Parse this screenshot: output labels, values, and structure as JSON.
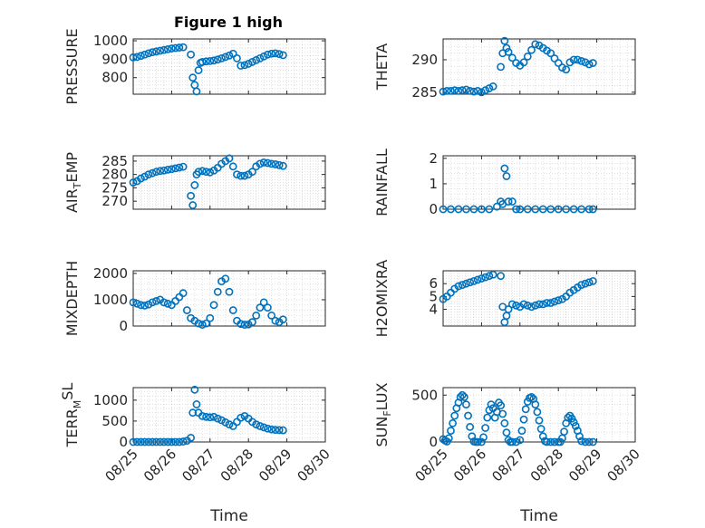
{
  "colors": {
    "marker": "#0072BD",
    "axes": "#262626"
  },
  "figure": {
    "title": "Figure 1 high"
  },
  "chart_data": [
    {
      "type": "scatter",
      "id": "pressure",
      "title": "Figure 1 high",
      "ylabel": {
        "base": "PRESSURE"
      },
      "xlim": [
        25,
        30
      ],
      "ylim": [
        710,
        1010
      ],
      "yticks": [
        800,
        900,
        1000
      ],
      "xticks": [
        25,
        26,
        27,
        28,
        29,
        30
      ],
      "xticklabels": [],
      "xlabel": "",
      "x": [
        25.0,
        25.1,
        25.2,
        25.3,
        25.4,
        25.5,
        25.6,
        25.7,
        25.8,
        25.9,
        26.0,
        26.1,
        26.2,
        26.3,
        26.5,
        26.55,
        26.6,
        26.65,
        26.7,
        26.75,
        26.8,
        26.9,
        27.0,
        27.1,
        27.2,
        27.3,
        27.4,
        27.5,
        27.6,
        27.7,
        27.8,
        27.9,
        28.0,
        28.1,
        28.2,
        28.3,
        28.4,
        28.5,
        28.6,
        28.7,
        28.8,
        28.9
      ],
      "y": [
        910,
        912,
        918,
        925,
        932,
        938,
        942,
        946,
        950,
        954,
        958,
        961,
        963,
        965,
        925,
        800,
        760,
        725,
        840,
        880,
        885,
        888,
        890,
        893,
        898,
        905,
        912,
        920,
        930,
        905,
        865,
        868,
        875,
        885,
        895,
        905,
        915,
        925,
        930,
        932,
        928,
        922
      ]
    },
    {
      "type": "scatter",
      "id": "theta",
      "ylabel": {
        "base": "THETA"
      },
      "xlim": [
        25,
        30
      ],
      "ylim": [
        284.7,
        293.2
      ],
      "yticks": [
        285,
        290
      ],
      "xticks": [
        25,
        26,
        27,
        28,
        29,
        30
      ],
      "xticklabels": [],
      "xlabel": "",
      "x": [
        25.0,
        25.1,
        25.2,
        25.3,
        25.4,
        25.5,
        25.6,
        25.7,
        25.8,
        25.9,
        26.0,
        26.1,
        26.2,
        26.3,
        26.5,
        26.55,
        26.6,
        26.65,
        26.7,
        26.8,
        26.9,
        27.0,
        27.1,
        27.2,
        27.3,
        27.4,
        27.5,
        27.6,
        27.7,
        27.8,
        27.9,
        28.0,
        28.1,
        28.2,
        28.3,
        28.4,
        28.5,
        28.6,
        28.7,
        28.8,
        28.9
      ],
      "y": [
        285.1,
        285.2,
        285.2,
        285.3,
        285.2,
        285.3,
        285.4,
        285.2,
        285.1,
        285.2,
        285.0,
        285.3,
        285.6,
        285.9,
        288.9,
        291.0,
        292.9,
        291.8,
        291.2,
        290.3,
        289.5,
        289.1,
        289.6,
        290.5,
        291.5,
        292.4,
        292.2,
        291.8,
        291.4,
        291.0,
        290.2,
        289.5,
        288.8,
        288.5,
        289.6,
        290.0,
        290.0,
        289.8,
        289.6,
        289.3,
        289.5
      ]
    },
    {
      "type": "scatter",
      "id": "air-temp",
      "ylabel": {
        "base": "AIR",
        "sub": "T",
        "rest": "EMP"
      },
      "xlim": [
        25,
        30
      ],
      "ylim": [
        267,
        287
      ],
      "yticks": [
        270,
        275,
        280,
        285
      ],
      "xticks": [
        25,
        26,
        27,
        28,
        29,
        30
      ],
      "xticklabels": [],
      "xlabel": "",
      "x": [
        25.0,
        25.1,
        25.2,
        25.3,
        25.4,
        25.5,
        25.6,
        25.7,
        25.8,
        25.9,
        26.0,
        26.1,
        26.2,
        26.3,
        26.5,
        26.55,
        26.6,
        26.65,
        26.7,
        26.8,
        26.9,
        27.0,
        27.1,
        27.2,
        27.3,
        27.4,
        27.5,
        27.6,
        27.7,
        27.8,
        27.9,
        28.0,
        28.1,
        28.2,
        28.3,
        28.4,
        28.5,
        28.6,
        28.7,
        28.8,
        28.9
      ],
      "y": [
        277.0,
        277.5,
        278.5,
        279.2,
        280.0,
        280.5,
        281.0,
        281.3,
        281.5,
        281.8,
        282.0,
        282.3,
        282.6,
        282.9,
        272.0,
        268.5,
        276.0,
        280.0,
        281.0,
        281.3,
        281.0,
        280.8,
        281.5,
        282.5,
        284.0,
        285.0,
        286.0,
        283.0,
        280.0,
        279.5,
        279.5,
        280.0,
        281.0,
        283.0,
        284.0,
        284.5,
        284.3,
        284.0,
        283.8,
        283.5,
        283.2
      ]
    },
    {
      "type": "scatter",
      "id": "rainfall",
      "ylabel": {
        "base": "RAINFALL"
      },
      "xlim": [
        25,
        30
      ],
      "ylim": [
        0,
        2.1
      ],
      "yticks": [
        0,
        1,
        2
      ],
      "xticks": [
        25,
        26,
        27,
        28,
        29,
        30
      ],
      "xticklabels": [],
      "xlabel": "",
      "x": [
        25.0,
        25.2,
        25.4,
        25.6,
        25.8,
        26.0,
        26.2,
        26.4,
        26.5,
        26.55,
        26.6,
        26.65,
        26.7,
        26.8,
        26.9,
        27.0,
        27.2,
        27.4,
        27.6,
        27.8,
        28.0,
        28.2,
        28.4,
        28.6,
        28.8,
        28.9
      ],
      "y": [
        0,
        0,
        0,
        0,
        0,
        0,
        0,
        0.1,
        0.3,
        0.2,
        1.6,
        1.3,
        0.3,
        0.3,
        0,
        0,
        0,
        0,
        0,
        0,
        0,
        0,
        0,
        0,
        0,
        0
      ]
    },
    {
      "type": "scatter",
      "id": "mixdepth",
      "ylabel": {
        "base": "MIXDEPTH"
      },
      "xlim": [
        25,
        30
      ],
      "ylim": [
        0,
        2100
      ],
      "yticks": [
        0,
        1000,
        2000
      ],
      "xticks": [
        25,
        26,
        27,
        28,
        29,
        30
      ],
      "xticklabels": [],
      "xlabel": "",
      "x": [
        25.0,
        25.1,
        25.2,
        25.3,
        25.4,
        25.5,
        25.6,
        25.7,
        25.8,
        25.9,
        26.0,
        26.1,
        26.2,
        26.3,
        26.4,
        26.5,
        26.6,
        26.7,
        26.8,
        26.9,
        27.0,
        27.1,
        27.2,
        27.3,
        27.4,
        27.5,
        27.6,
        27.7,
        27.8,
        27.9,
        28.0,
        28.1,
        28.2,
        28.3,
        28.4,
        28.5,
        28.6,
        28.7,
        28.8,
        28.9
      ],
      "y": [
        900,
        850,
        800,
        780,
        820,
        900,
        950,
        1000,
        900,
        850,
        800,
        950,
        1100,
        1250,
        600,
        300,
        200,
        100,
        50,
        100,
        300,
        800,
        1300,
        1700,
        1800,
        1300,
        600,
        200,
        80,
        50,
        60,
        150,
        400,
        700,
        900,
        700,
        400,
        200,
        150,
        250
      ]
    },
    {
      "type": "scatter",
      "id": "h2omixra",
      "ylabel": {
        "base": "H2OMIXRA"
      },
      "xlim": [
        25,
        30
      ],
      "ylim": [
        2.7,
        7.0
      ],
      "yticks": [
        4,
        5,
        6
      ],
      "xticks": [
        25,
        26,
        27,
        28,
        29,
        30
      ],
      "xticklabels": [],
      "xlabel": "",
      "x": [
        25.0,
        25.1,
        25.2,
        25.3,
        25.4,
        25.5,
        25.6,
        25.7,
        25.8,
        25.9,
        26.0,
        26.1,
        26.2,
        26.3,
        26.5,
        26.55,
        26.6,
        26.65,
        26.7,
        26.8,
        26.9,
        27.0,
        27.1,
        27.2,
        27.3,
        27.4,
        27.5,
        27.6,
        27.7,
        27.8,
        27.9,
        28.0,
        28.1,
        28.2,
        28.3,
        28.4,
        28.5,
        28.6,
        28.7,
        28.8,
        28.9
      ],
      "y": [
        4.8,
        5.0,
        5.3,
        5.6,
        5.8,
        5.9,
        6.0,
        6.1,
        6.2,
        6.3,
        6.4,
        6.5,
        6.6,
        6.7,
        6.6,
        4.2,
        3.0,
        3.5,
        4.0,
        4.4,
        4.3,
        4.2,
        4.4,
        4.3,
        4.2,
        4.3,
        4.4,
        4.4,
        4.5,
        4.5,
        4.6,
        4.7,
        4.8,
        5.0,
        5.3,
        5.5,
        5.7,
        5.9,
        6.0,
        6.1,
        6.2
      ]
    },
    {
      "type": "scatter",
      "id": "terr-msl",
      "ylabel": {
        "base": "TERR",
        "sub": "M",
        "rest": "",
        "sup": "SL"
      },
      "xlim": [
        25,
        30
      ],
      "ylim": [
        0,
        1300
      ],
      "yticks": [
        0,
        500,
        1000
      ],
      "xticks": [
        25,
        26,
        27,
        28,
        29,
        30
      ],
      "xticklabels": [
        "08/25",
        "08/26",
        "08/27",
        "08/28",
        "08/29",
        "08/30"
      ],
      "xlabel": "Time",
      "x": [
        25.0,
        25.1,
        25.2,
        25.3,
        25.4,
        25.5,
        25.6,
        25.7,
        25.8,
        25.9,
        26.0,
        26.1,
        26.2,
        26.3,
        26.4,
        26.5,
        26.55,
        26.6,
        26.65,
        26.7,
        26.8,
        26.9,
        27.0,
        27.1,
        27.2,
        27.3,
        27.4,
        27.5,
        27.6,
        27.7,
        27.8,
        27.9,
        28.0,
        28.1,
        28.2,
        28.3,
        28.4,
        28.5,
        28.6,
        28.7,
        28.8,
        28.9
      ],
      "y": [
        0,
        0,
        0,
        0,
        0,
        0,
        0,
        0,
        0,
        0,
        0,
        0,
        0,
        10,
        30,
        100,
        700,
        1250,
        900,
        700,
        620,
        600,
        590,
        600,
        560,
        520,
        470,
        420,
        380,
        480,
        580,
        620,
        560,
        480,
        420,
        380,
        350,
        320,
        300,
        290,
        285,
        280
      ]
    },
    {
      "type": "scatter",
      "id": "sun-flux",
      "ylabel": {
        "base": "SUN",
        "sub": "F",
        "rest": "LUX"
      },
      "xlim": [
        25,
        30
      ],
      "ylim": [
        0,
        580
      ],
      "yticks": [
        0,
        500
      ],
      "xticks": [
        25,
        26,
        27,
        28,
        29,
        30
      ],
      "xticklabels": [
        "08/25",
        "08/26",
        "08/27",
        "08/28",
        "08/29",
        "08/30"
      ],
      "xlabel": "Time",
      "x": [
        25.0,
        25.05,
        25.1,
        25.15,
        25.2,
        25.25,
        25.3,
        25.35,
        25.4,
        25.45,
        25.5,
        25.55,
        25.6,
        25.65,
        25.7,
        25.75,
        25.8,
        25.85,
        25.9,
        26.0,
        26.05,
        26.1,
        26.15,
        26.2,
        26.25,
        26.3,
        26.35,
        26.4,
        26.45,
        26.5,
        26.55,
        26.6,
        26.65,
        26.7,
        26.75,
        26.8,
        26.9,
        27.0,
        27.05,
        27.1,
        27.15,
        27.2,
        27.25,
        27.3,
        27.35,
        27.4,
        27.45,
        27.5,
        27.55,
        27.6,
        27.65,
        27.7,
        27.8,
        27.9,
        28.0,
        28.05,
        28.1,
        28.15,
        28.2,
        28.25,
        28.3,
        28.35,
        28.4,
        28.45,
        28.5,
        28.55,
        28.6,
        28.7,
        28.8,
        28.9
      ],
      "y": [
        30,
        15,
        5,
        40,
        120,
        200,
        280,
        360,
        420,
        480,
        500,
        480,
        400,
        280,
        160,
        60,
        5,
        0,
        0,
        0,
        50,
        150,
        260,
        340,
        400,
        360,
        260,
        320,
        420,
        390,
        300,
        200,
        100,
        20,
        0,
        0,
        0,
        20,
        120,
        240,
        350,
        430,
        470,
        480,
        460,
        400,
        320,
        230,
        140,
        60,
        10,
        0,
        0,
        0,
        0,
        0,
        40,
        110,
        200,
        260,
        280,
        250,
        210,
        170,
        120,
        60,
        10,
        0,
        0,
        0
      ]
    }
  ]
}
